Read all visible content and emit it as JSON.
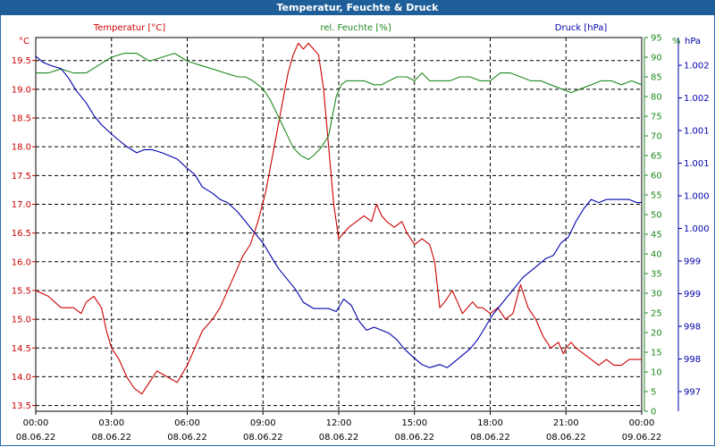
{
  "window": {
    "title": "Temperatur, Feuchte & Druck"
  },
  "colors": {
    "temperature": "#cc0000",
    "humidity": "#1f8a1f",
    "pressure": "#0000aa",
    "titlebar": "#1f5f99"
  },
  "chart_data": {
    "type": "line",
    "title": "Temperatur, Feuchte & Druck",
    "grid": true,
    "x_ticks": [
      {
        "time": "00:00",
        "date": "08.06.22"
      },
      {
        "time": "03:00",
        "date": "08.06.22"
      },
      {
        "time": "06:00",
        "date": "08.06.22"
      },
      {
        "time": "09:00",
        "date": "08.06.22"
      },
      {
        "time": "12:00",
        "date": "08.06.22"
      },
      {
        "time": "15:00",
        "date": "08.06.22"
      },
      {
        "time": "18:00",
        "date": "08.06.22"
      },
      {
        "time": "21:00",
        "date": "08.06.22"
      },
      {
        "time": "00:00",
        "date": "09.06.22"
      }
    ],
    "axes": {
      "temperature": {
        "label": "Temperatur [°C]",
        "unit": "°C",
        "ylim": [
          13.4,
          19.9
        ],
        "ticks": [
          "19.5",
          "19.0",
          "18.5",
          "18.0",
          "17.5",
          "17.0",
          "16.5",
          "16.0",
          "15.5",
          "15.0",
          "14.5",
          "14.0",
          "13.5"
        ]
      },
      "humidity": {
        "label": "rel. Feuchte [%]",
        "unit": "%",
        "ylim": [
          0,
          95
        ],
        "ticks": [
          "95",
          "90",
          "85",
          "80",
          "75",
          "70",
          "65",
          "60",
          "55",
          "50",
          "45",
          "40",
          "35",
          "30",
          "25",
          "20",
          "15",
          "10",
          "5",
          "0"
        ]
      },
      "pressure": {
        "label": "Druck [hPa]",
        "unit": "hPa",
        "ylim": [
          996.7,
          1002.7
        ],
        "ticks": [
          "1.002",
          "1.002",
          "1.001",
          "1.001",
          "1.000",
          "1.000",
          "999",
          "999",
          "998",
          "998",
          "997"
        ]
      }
    },
    "series": [
      {
        "name": "Temperatur [°C]",
        "axis": "temperature",
        "x_hours": [
          0,
          0.5,
          1,
          1.5,
          1.8,
          2,
          2.3,
          2.6,
          2.8,
          3,
          3.3,
          3.6,
          3.9,
          4.2,
          4.5,
          4.8,
          5.2,
          5.6,
          6,
          6.3,
          6.6,
          7,
          7.3,
          7.6,
          7.9,
          8.2,
          8.5,
          8.8,
          9.1,
          9.4,
          9.7,
          10,
          10.2,
          10.4,
          10.6,
          10.8,
          11,
          11.2,
          11.4,
          11.6,
          11.8,
          12,
          12.2,
          12.4,
          12.7,
          13,
          13.3,
          13.5,
          13.7,
          13.9,
          14.2,
          14.5,
          14.7,
          15,
          15.3,
          15.6,
          15.8,
          16,
          16.2,
          16.5,
          16.7,
          16.9,
          17.1,
          17.3,
          17.5,
          17.7,
          18,
          18.3,
          18.6,
          18.9,
          19.2,
          19.5,
          19.8,
          20.1,
          20.4,
          20.7,
          20.9,
          21,
          21.2,
          21.4,
          21.7,
          22,
          22.3,
          22.6,
          22.9,
          23.2,
          23.5,
          23.8,
          24
        ],
        "values": [
          15.5,
          15.4,
          15.2,
          15.2,
          15.1,
          15.3,
          15.4,
          15.2,
          14.8,
          14.5,
          14.3,
          14.0,
          13.8,
          13.7,
          13.9,
          14.1,
          14.0,
          13.9,
          14.2,
          14.5,
          14.8,
          15.0,
          15.2,
          15.5,
          15.8,
          16.1,
          16.3,
          16.7,
          17.2,
          17.9,
          18.6,
          19.3,
          19.6,
          19.8,
          19.7,
          19.8,
          19.7,
          19.6,
          19.0,
          18.0,
          17.0,
          16.4,
          16.5,
          16.6,
          16.7,
          16.8,
          16.7,
          17.0,
          16.8,
          16.7,
          16.6,
          16.7,
          16.5,
          16.3,
          16.4,
          16.3,
          16.0,
          15.2,
          15.3,
          15.5,
          15.3,
          15.1,
          15.2,
          15.3,
          15.2,
          15.2,
          15.1,
          15.2,
          15.0,
          15.1,
          15.6,
          15.2,
          15.0,
          14.7,
          14.5,
          14.6,
          14.4,
          14.5,
          14.6,
          14.5,
          14.4,
          14.3,
          14.2,
          14.3,
          14.2,
          14.2,
          14.3,
          14.3,
          14.3
        ]
      },
      {
        "name": "rel. Feuchte [%]",
        "axis": "humidity",
        "x_hours": [
          0,
          0.5,
          1,
          1.5,
          2,
          2.5,
          3,
          3.5,
          4,
          4.5,
          5,
          5.5,
          6,
          6.5,
          7,
          7.5,
          8,
          8.3,
          8.6,
          9,
          9.3,
          9.6,
          9.9,
          10.2,
          10.5,
          10.8,
          11,
          11.3,
          11.6,
          11.9,
          12.1,
          12.3,
          12.6,
          13,
          13.4,
          13.7,
          14,
          14.3,
          14.7,
          15,
          15.3,
          15.6,
          16,
          16.4,
          16.8,
          17.2,
          17.6,
          18,
          18.4,
          18.8,
          19.2,
          19.6,
          20,
          20.4,
          20.8,
          21.2,
          21.6,
          22,
          22.4,
          22.8,
          23.2,
          23.6,
          24
        ],
        "values": [
          86,
          86,
          87,
          86,
          86,
          88,
          90,
          91,
          91,
          89,
          90,
          91,
          89,
          88,
          87,
          86,
          85,
          85,
          84,
          82,
          79,
          75,
          71,
          67,
          65,
          64,
          65,
          67,
          70,
          80,
          83,
          84,
          84,
          84,
          83,
          83,
          84,
          85,
          85,
          84,
          86,
          84,
          84,
          84,
          85,
          85,
          84,
          84,
          86,
          86,
          85,
          84,
          84,
          83,
          82,
          81,
          82,
          83,
          84,
          84,
          83,
          84,
          83
        ]
      },
      {
        "name": "Druck [hPa]",
        "axis": "pressure",
        "x_hours": [
          0,
          0.3,
          0.6,
          1,
          1.3,
          1.6,
          2,
          2.3,
          2.6,
          3,
          3.3,
          3.6,
          4,
          4.3,
          4.6,
          5,
          5.3,
          5.6,
          6,
          6.3,
          6.6,
          7,
          7.3,
          7.6,
          8,
          8.3,
          8.6,
          9,
          9.3,
          9.6,
          10,
          10.3,
          10.6,
          11,
          11.3,
          11.6,
          11.9,
          12.2,
          12.5,
          12.8,
          13.1,
          13.4,
          13.7,
          14,
          14.3,
          14.6,
          15,
          15.3,
          15.6,
          16,
          16.3,
          16.6,
          16.9,
          17.2,
          17.5,
          17.8,
          18.1,
          18.4,
          18.7,
          19,
          19.3,
          19.6,
          19.9,
          20.2,
          20.5,
          20.8,
          21.1,
          21.4,
          21.7,
          22,
          22.3,
          22.6,
          22.9,
          23.2,
          23.5,
          23.8,
          24
        ],
        "values": [
          1002.4,
          1002.3,
          1002.25,
          1002.2,
          1002.05,
          1001.85,
          1001.65,
          1001.45,
          1001.3,
          1001.15,
          1001.05,
          1000.95,
          1000.85,
          1000.9,
          1000.9,
          1000.85,
          1000.8,
          1000.75,
          1000.6,
          1000.5,
          1000.3,
          1000.2,
          1000.1,
          1000.05,
          999.9,
          999.75,
          999.6,
          999.4,
          999.2,
          999.0,
          998.8,
          998.65,
          998.45,
          998.35,
          998.35,
          998.35,
          998.3,
          998.5,
          998.4,
          998.15,
          998.0,
          998.05,
          998.0,
          997.95,
          997.85,
          997.7,
          997.55,
          997.45,
          997.4,
          997.45,
          997.4,
          997.5,
          997.6,
          997.7,
          997.85,
          998.05,
          998.25,
          998.4,
          998.55,
          998.7,
          998.85,
          998.95,
          999.05,
          999.15,
          999.2,
          999.4,
          999.5,
          999.75,
          999.95,
          1000.1,
          1000.05,
          1000.1,
          1000.1,
          1000.1,
          1000.1,
          1000.05,
          1000.05
        ]
      }
    ]
  }
}
